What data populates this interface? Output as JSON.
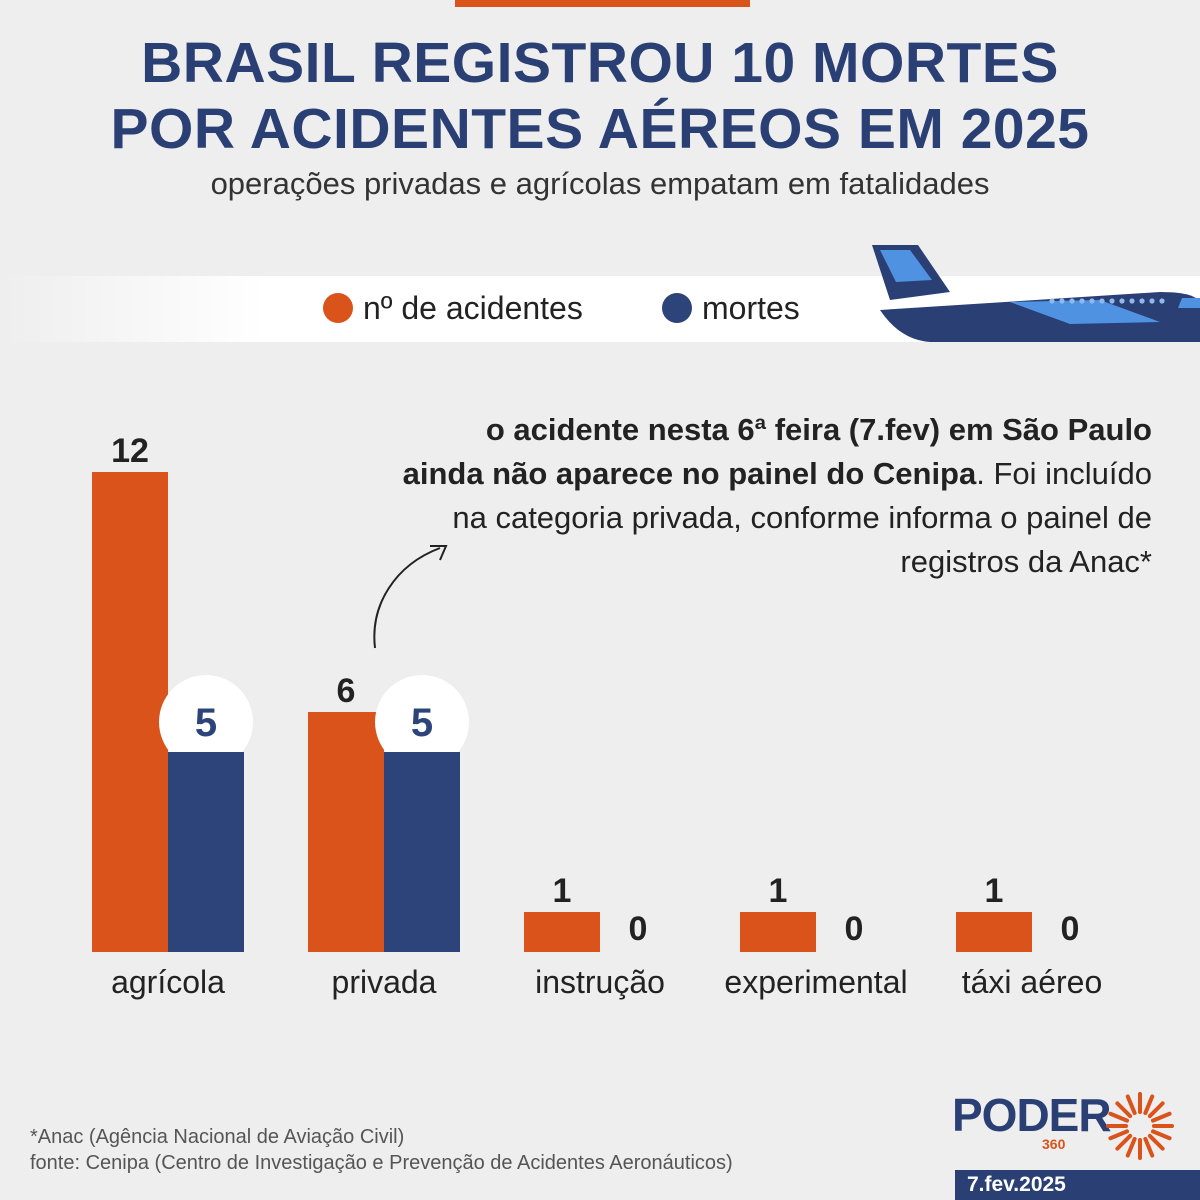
{
  "header": {
    "title_line1": "BRASIL REGISTROU 10 MORTES",
    "title_line2": "POR ACIDENTES AÉREOS EM 2025",
    "subtitle": "operações privadas e agrícolas empatam em fatalidades"
  },
  "legend": {
    "accidents_label": "nº de acidentes",
    "deaths_label": "mortes"
  },
  "note": {
    "bold_part1": "o acidente nesta 6ª feira (7.fev) em São Paulo",
    "bold_part2": "ainda não aparece no painel do Cenipa",
    "regular": ". Foi incluído na categoria privada, conforme informa o painel de registros da Anac*"
  },
  "chart_data": {
    "type": "bar",
    "title": "BRASIL REGISTROU 10 MORTES POR ACIDENTES AÉREOS EM 2025",
    "subtitle": "operações privadas e agrícolas empatam em fatalidades",
    "xlabel": "",
    "ylabel": "",
    "categories": [
      "agrícola",
      "privada",
      "instrução",
      "experimental",
      "táxi aéreo"
    ],
    "series": [
      {
        "name": "nº de acidentes",
        "values": [
          12,
          6,
          1,
          1,
          1
        ],
        "color": "#d9531a"
      },
      {
        "name": "mortes",
        "values": [
          5,
          5,
          0,
          0,
          0
        ],
        "color": "#2c4479"
      }
    ],
    "ylim": [
      0,
      12
    ],
    "grid": false,
    "legend_position": "top"
  },
  "footer": {
    "footnote": "*Anac (Agência Nacional de Aviação Civil)",
    "source": "fonte: Cenipa (Centro de Investigação e Prevenção de Acidentes Aeronáuticos)",
    "logo_text": "PODER",
    "logo_sub": "360",
    "date": "7.fev.2025"
  },
  "colors": {
    "accent": "#d9531a",
    "brand": "#2a3f73",
    "deaths": "#2c4479",
    "background": "#eeeeee"
  },
  "icons": {
    "airplane": "airplane-icon",
    "arrow": "curved-arrow-icon",
    "logo_sun": "sun-rays-icon"
  }
}
